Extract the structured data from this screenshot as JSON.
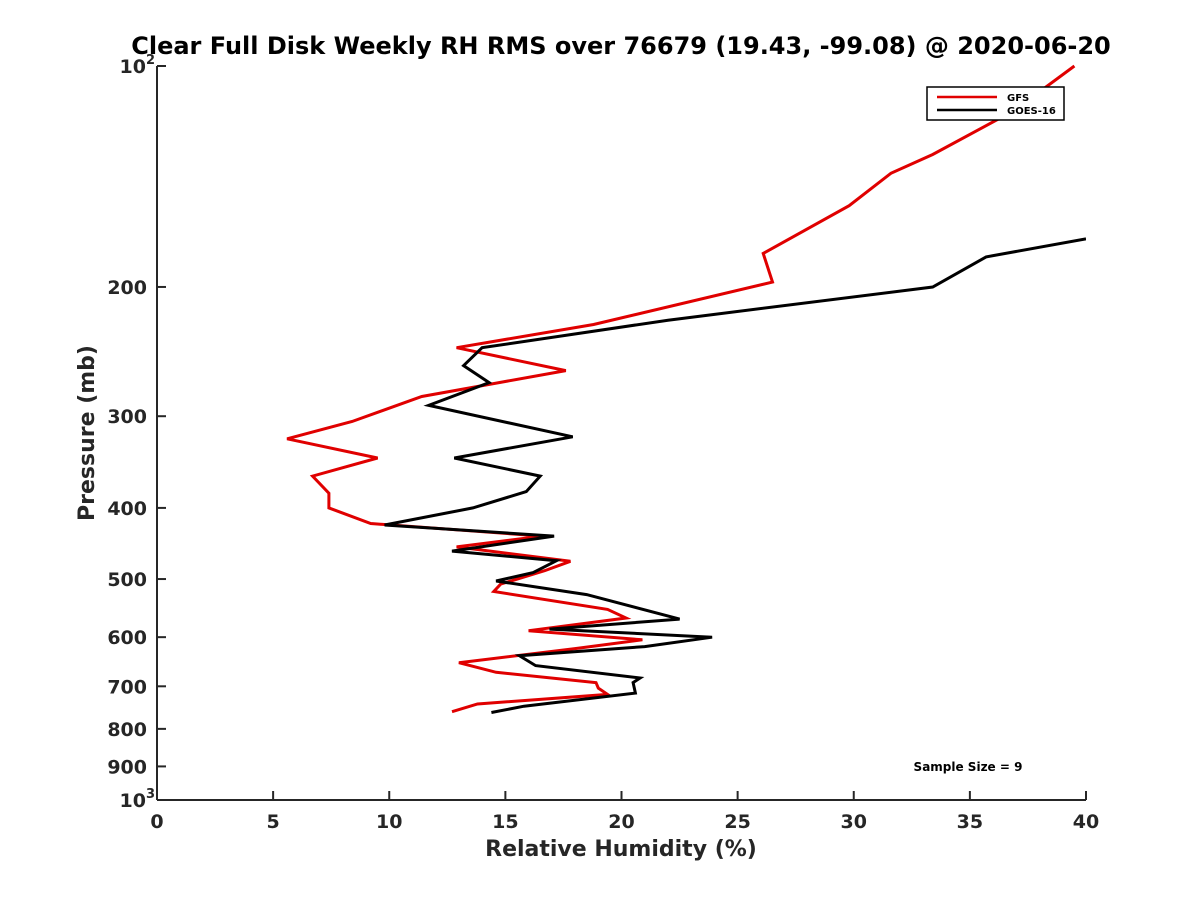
{
  "chart_data": {
    "type": "line",
    "title": "Clear Full Disk Weekly RH RMS over 76679 (19.43, -99.08) @ 2020-06-20",
    "xlabel": "Relative Humidity (%)",
    "ylabel": "Pressure (mb)",
    "xlim": [
      0,
      40
    ],
    "ylim": [
      100,
      1000
    ],
    "y_scale": "log",
    "y_reversed": true,
    "grid": false,
    "legend_position": "top-right",
    "x_ticks": [
      0,
      5,
      10,
      15,
      20,
      25,
      30,
      35,
      40
    ],
    "x_tick_labels": [
      "0",
      "5",
      "10",
      "15",
      "20",
      "25",
      "30",
      "35",
      "40"
    ],
    "y_ticks": [
      100,
      200,
      300,
      400,
      500,
      600,
      700,
      800,
      900,
      1000
    ],
    "y_tick_labels": [
      {
        "base": "10",
        "exp": "2"
      },
      {
        "base": "200",
        "exp": ""
      },
      {
        "base": "300",
        "exp": ""
      },
      {
        "base": "400",
        "exp": ""
      },
      {
        "base": "500",
        "exp": ""
      },
      {
        "base": "600",
        "exp": ""
      },
      {
        "base": "700",
        "exp": ""
      },
      {
        "base": "800",
        "exp": ""
      },
      {
        "base": "900",
        "exp": ""
      },
      {
        "base": "10",
        "exp": "3"
      }
    ],
    "annotation": "Sample Size = 9",
    "series": [
      {
        "name": "GFS",
        "color": "#e00000",
        "x": [
          39.5,
          36.9,
          33.4,
          31.6,
          29.8,
          26.1,
          26.5,
          18.8,
          12.9,
          17.6,
          11.4,
          8.4,
          5.6,
          9.5,
          6.7,
          7.4,
          7.4,
          9.2,
          16.6,
          12.9,
          17.8,
          16.7,
          14.8,
          14.5,
          19.4,
          20.2,
          16.0,
          20.9,
          18.0,
          13.0,
          14.6,
          18.9,
          19.0,
          19.4,
          13.8,
          12.7
        ],
        "y": [
          100,
          115,
          132,
          140,
          155,
          180,
          197,
          225,
          242,
          260,
          282,
          305,
          322,
          342,
          362,
          382,
          400,
          420,
          437,
          452,
          473,
          487,
          508,
          520,
          550,
          565,
          588,
          605,
          622,
          650,
          670,
          692,
          704,
          718,
          740,
          758
        ]
      },
      {
        "name": "GOES-16",
        "color": "#000000",
        "x": [
          40.0,
          35.7,
          33.4,
          22.0,
          14.0,
          13.2,
          14.3,
          11.7,
          17.9,
          12.8,
          16.5,
          15.9,
          13.6,
          9.8,
          17.1,
          12.7,
          17.2,
          16.2,
          14.6,
          18.5,
          22.5,
          16.9,
          23.9,
          21.0,
          15.6,
          16.3,
          20.8,
          20.5,
          20.6,
          15.8,
          14.4
        ],
        "y": [
          172,
          182,
          200,
          222,
          242,
          256,
          270,
          290,
          320,
          342,
          362,
          380,
          400,
          422,
          437,
          458,
          472,
          490,
          503,
          525,
          567,
          585,
          600,
          618,
          636,
          656,
          682,
          692,
          715,
          745,
          760
        ]
      }
    ]
  }
}
